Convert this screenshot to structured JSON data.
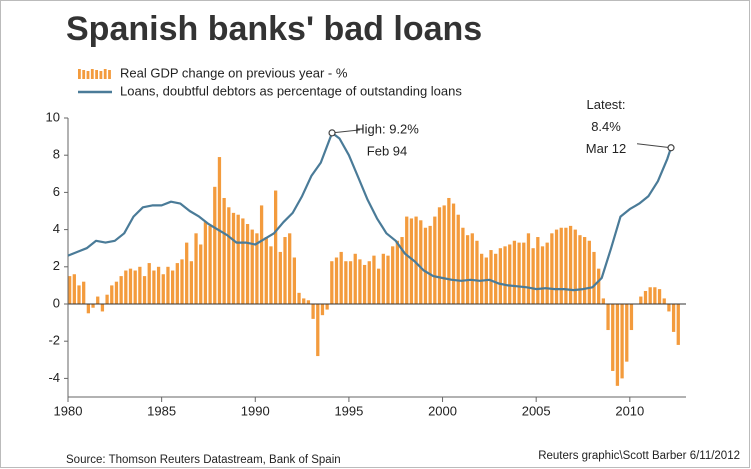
{
  "chart_data": {
    "type": "bar_line",
    "title": "Spanish banks' bad loans",
    "source": "Source: Thomson Reuters Datastream, Bank of Spain",
    "credit": "Reuters graphic\\Scott Barber 6/11/2012",
    "xlim": [
      1980,
      2013
    ],
    "xticks": [
      1980,
      1985,
      1990,
      1995,
      2000,
      2005,
      2010
    ],
    "ylim": [
      -5,
      10
    ],
    "yticks": [
      -4,
      -2,
      0,
      2,
      4,
      6,
      8,
      10
    ],
    "grid": false,
    "annotations": [
      {
        "lines": [
          "High: 9.2%",
          "Feb 94"
        ]
      },
      {
        "lines": [
          "Latest:",
          "8.4%",
          "Mar 12"
        ]
      }
    ],
    "series": [
      {
        "name": "Real GDP change on previous year - %",
        "type": "bar",
        "color": "#f39b3d",
        "x": [
          1980,
          1980.25,
          1980.5,
          1980.75,
          1981,
          1981.25,
          1981.5,
          1981.75,
          1982,
          1982.25,
          1982.5,
          1982.75,
          1983,
          1983.25,
          1983.5,
          1983.75,
          1984,
          1984.25,
          1984.5,
          1984.75,
          1985,
          1985.25,
          1985.5,
          1985.75,
          1986,
          1986.25,
          1986.5,
          1986.75,
          1987,
          1987.25,
          1987.5,
          1987.75,
          1988,
          1988.25,
          1988.5,
          1988.75,
          1989,
          1989.25,
          1989.5,
          1989.75,
          1990,
          1990.25,
          1990.5,
          1990.75,
          1991,
          1991.25,
          1991.5,
          1991.75,
          1992,
          1992.25,
          1992.5,
          1992.75,
          1993,
          1993.25,
          1993.5,
          1993.75,
          1994,
          1994.25,
          1994.5,
          1994.75,
          1995,
          1995.25,
          1995.5,
          1995.75,
          1996,
          1996.25,
          1996.5,
          1996.75,
          1997,
          1997.25,
          1997.5,
          1997.75,
          1998,
          1998.25,
          1998.5,
          1998.75,
          1999,
          1999.25,
          1999.5,
          1999.75,
          2000,
          2000.25,
          2000.5,
          2000.75,
          2001,
          2001.25,
          2001.5,
          2001.75,
          2002,
          2002.25,
          2002.5,
          2002.75,
          2003,
          2003.25,
          2003.5,
          2003.75,
          2004,
          2004.25,
          2004.5,
          2004.75,
          2005,
          2005.25,
          2005.5,
          2005.75,
          2006,
          2006.25,
          2006.5,
          2006.75,
          2007,
          2007.25,
          2007.5,
          2007.75,
          2008,
          2008.25,
          2008.5,
          2008.75,
          2009,
          2009.25,
          2009.5,
          2009.75,
          2010,
          2010.25,
          2010.5,
          2010.75,
          2011,
          2011.25,
          2011.5,
          2011.75,
          2012,
          2012.25,
          2012.5
        ],
        "values": [
          1.5,
          1.6,
          1.0,
          1.2,
          -0.5,
          -0.2,
          0.4,
          -0.4,
          0.5,
          1.0,
          1.2,
          1.5,
          1.8,
          1.9,
          1.8,
          2.0,
          1.5,
          2.2,
          1.8,
          2.0,
          1.6,
          2.0,
          1.8,
          2.2,
          2.4,
          3.3,
          2.3,
          3.8,
          3.2,
          4.4,
          4.2,
          6.3,
          7.9,
          5.7,
          5.2,
          4.9,
          4.8,
          4.6,
          4.3,
          4.0,
          3.8,
          5.3,
          3.6,
          3.1,
          6.1,
          2.8,
          3.6,
          3.8,
          2.5,
          0.6,
          0.3,
          0.2,
          -0.8,
          -2.8,
          -0.6,
          -0.3,
          2.3,
          2.5,
          2.8,
          2.3,
          2.3,
          2.7,
          2.4,
          2.1,
          2.3,
          2.6,
          1.9,
          2.7,
          2.6,
          3.1,
          3.4,
          3.6,
          4.7,
          4.6,
          4.7,
          4.5,
          4.1,
          4.2,
          4.7,
          5.2,
          5.3,
          5.7,
          5.4,
          4.8,
          4.1,
          3.7,
          3.8,
          3.4,
          2.7,
          2.5,
          2.9,
          2.7,
          3.0,
          3.1,
          3.2,
          3.4,
          3.3,
          3.3,
          3.8,
          3.0,
          3.6,
          3.1,
          3.3,
          3.8,
          4.0,
          4.1,
          4.1,
          4.2,
          4.0,
          3.7,
          3.6,
          3.4,
          2.8,
          1.9,
          0.3,
          -1.4,
          -3.6,
          -4.4,
          -4.0,
          -3.1,
          -1.4,
          0.0,
          0.4,
          0.7,
          0.9,
          0.9,
          0.8,
          0.3,
          -0.4,
          -1.5,
          -2.2
        ]
      },
      {
        "name": "Loans, doubtful debtors as percentage of outstanding loans",
        "type": "line",
        "color": "#4a7b98",
        "x": [
          1980,
          1980.5,
          1981,
          1981.5,
          1982,
          1982.5,
          1983,
          1983.5,
          1984,
          1984.5,
          1985,
          1985.5,
          1986,
          1986.5,
          1987,
          1987.5,
          1988,
          1988.5,
          1989,
          1989.5,
          1990,
          1990.5,
          1991,
          1991.5,
          1992,
          1992.5,
          1993,
          1993.5,
          1994.1,
          1994.5,
          1995,
          1995.5,
          1996,
          1996.5,
          1997,
          1997.5,
          1998,
          1998.5,
          1999,
          1999.5,
          2000,
          2000.5,
          2001,
          2001.5,
          2002,
          2002.5,
          2003,
          2003.5,
          2004,
          2004.5,
          2005,
          2005.5,
          2006,
          2006.5,
          2007,
          2007.5,
          2008,
          2008.5,
          2009,
          2009.5,
          2010,
          2010.5,
          2011,
          2011.5,
          2012,
          2012.2
        ],
        "values": [
          2.6,
          2.8,
          3.0,
          3.4,
          3.3,
          3.4,
          3.8,
          4.7,
          5.2,
          5.3,
          5.3,
          5.5,
          5.4,
          5.0,
          4.7,
          4.3,
          4.0,
          3.7,
          3.3,
          3.3,
          3.2,
          3.5,
          3.8,
          4.4,
          4.9,
          5.8,
          6.9,
          7.6,
          9.2,
          8.9,
          8.0,
          6.8,
          5.6,
          4.6,
          3.8,
          3.4,
          2.7,
          2.3,
          1.8,
          1.5,
          1.4,
          1.3,
          1.25,
          1.3,
          1.25,
          1.3,
          1.1,
          1.0,
          0.95,
          0.9,
          0.8,
          0.85,
          0.8,
          0.8,
          0.75,
          0.8,
          0.9,
          1.4,
          3.0,
          4.7,
          5.1,
          5.4,
          5.8,
          6.6,
          7.8,
          8.4
        ]
      }
    ]
  }
}
